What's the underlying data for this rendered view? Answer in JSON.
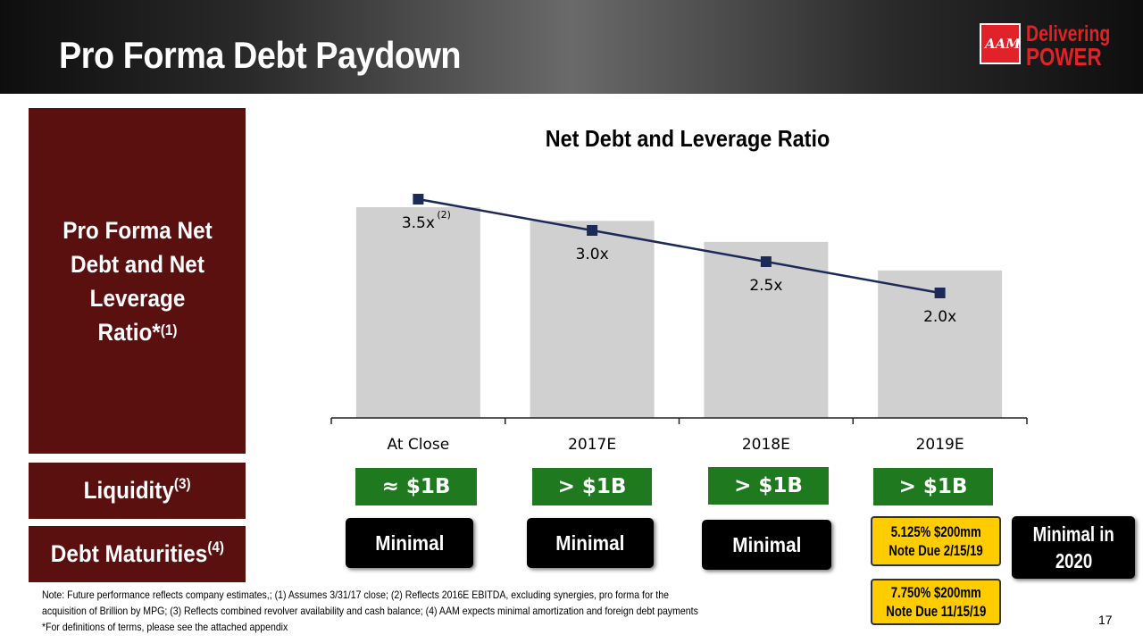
{
  "title": "Pro Forma Debt Paydown",
  "logo": {
    "mark": "AAM",
    "line1": "Delivering",
    "line2": "POWER"
  },
  "side_labels": {
    "main": "Pro Forma Net Debt and Net Leverage Ratio*",
    "main_sup": "(1)",
    "liquidity": "Liquidity",
    "liquidity_sup": "(3)",
    "debt": "Debt Maturities",
    "debt_sup": "(4)"
  },
  "chart_data": {
    "type": "bar",
    "title": "Net Debt and Leverage Ratio",
    "categories": [
      "At Close",
      "2017E",
      "2018E",
      "2019E"
    ],
    "bar_values": [
      100,
      93.5,
      83.5,
      70
    ],
    "series": [
      {
        "values": [
          3.5,
          3.0,
          2.5,
          2.0
        ],
        "labels": [
          "3.5x",
          "3.0x",
          "2.5x",
          "2.0x"
        ]
      }
    ],
    "first_label_sup": "(2)",
    "ylim": [
      0,
      3.8
    ],
    "grid": false,
    "colors": {
      "bar": "#d0d0d0",
      "line": "#1b2a57"
    }
  },
  "liquidity": [
    "≈ $1B",
    "> $1B",
    "> $1B",
    "> $1B"
  ],
  "maturities": {
    "minimal": [
      "Minimal",
      "Minimal",
      "Minimal"
    ],
    "notes_2019": [
      "5.125% $200mm Note Due 2/15/19",
      "7.750% $200mm Note Due 11/15/19"
    ],
    "notes_2019_lines": [
      [
        "5.125% $200mm",
        "Note Due 2/15/19"
      ],
      [
        "7.750% $200mm",
        "Note Due 11/15/19"
      ]
    ],
    "after": [
      "Minimal in",
      "2020"
    ]
  },
  "footnotes": [
    "Note: Future performance reflects company estimates,; (1) Assumes 3/31/17 close; (2) Reflects 2016E EBITDA, excluding synergies, pro forma for the",
    "acquisition of Brillion by MPG; (3) Reflects combined revolver availability and cash balance; (4) AAM expects minimal amortization and foreign debt payments",
    "*For definitions of terms, please see the attached appendix"
  ],
  "page_number": "17",
  "colors": {
    "dark_red": "#5b1010",
    "green": "#1f7a1f",
    "yellow": "#ffcc00",
    "brand_red": "#e12228"
  }
}
